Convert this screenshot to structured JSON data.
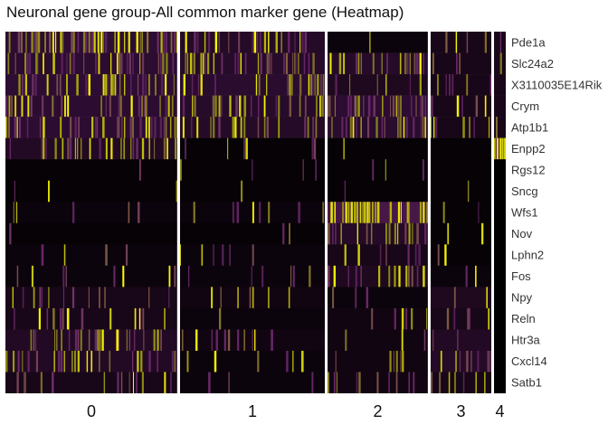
{
  "chart_data": {
    "type": "heatmap",
    "title": "Neuronal gene group-All common marker gene (Heatmap)",
    "xlabel": "",
    "ylabel": "",
    "genes": [
      "Pde1a",
      "Slc24a2",
      "X3110035E14Rik",
      "Crym",
      "Atp1b1",
      "Enpp2",
      "Rgs12",
      "Sncg",
      "Wfs1",
      "Nov",
      "Lphn2",
      "Fos",
      "Npy",
      "Reln",
      "Htr3a",
      "Cxcl14",
      "Satb1"
    ],
    "clusters": [
      "0",
      "1",
      "2",
      "3",
      "4"
    ],
    "cluster_cell_fraction": [
      0.351,
      0.296,
      0.205,
      0.124,
      0.024
    ],
    "expression_levels": [
      [
        0.55,
        0.35,
        0.1,
        0.2,
        0.2
      ],
      [
        0.5,
        0.4,
        0.35,
        0.2,
        0.2
      ],
      [
        0.55,
        0.45,
        0.25,
        0.2,
        0.2
      ],
      [
        0.5,
        0.4,
        0.5,
        0.2,
        0.2
      ],
      [
        0.5,
        0.35,
        0.45,
        0.2,
        0.2
      ],
      [
        0.3,
        0.05,
        0.05,
        0.05,
        0.95
      ],
      [
        0.05,
        0.05,
        0.05,
        0.05,
        0.0
      ],
      [
        0.05,
        0.05,
        0.05,
        0.05,
        0.0
      ],
      [
        0.1,
        0.1,
        0.8,
        0.05,
        0.0
      ],
      [
        0.05,
        0.05,
        0.35,
        0.05,
        0.0
      ],
      [
        0.1,
        0.1,
        0.2,
        0.05,
        0.0
      ],
      [
        0.1,
        0.1,
        0.25,
        0.1,
        0.0
      ],
      [
        0.2,
        0.15,
        0.1,
        0.25,
        0.0
      ],
      [
        0.2,
        0.1,
        0.15,
        0.2,
        0.0
      ],
      [
        0.3,
        0.15,
        0.15,
        0.3,
        0.0
      ],
      [
        0.3,
        0.1,
        0.15,
        0.35,
        0.0
      ],
      [
        0.2,
        0.1,
        0.15,
        0.2,
        0.0
      ]
    ],
    "color_scale": [
      "#000000",
      "#220a22",
      "#2e0d35",
      "#4a1a4a",
      "#6b2a6b",
      "#8a8a12",
      "#ffff00"
    ],
    "separator_color": "#ffffff",
    "legend": "none"
  }
}
